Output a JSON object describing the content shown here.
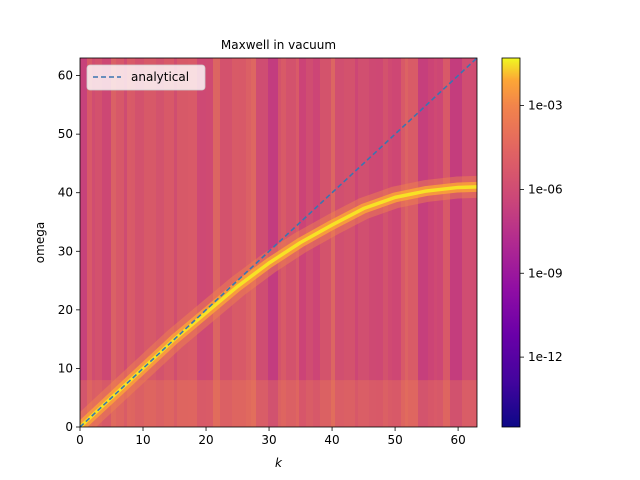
{
  "chart_data": {
    "type": "heatmap",
    "title": "Maxwell in vacuum",
    "xlabel": "k",
    "ylabel": "omega",
    "xlim": [
      0,
      63
    ],
    "ylim": [
      0,
      63
    ],
    "x_ticks": [
      {
        "value": 0,
        "label": "0"
      },
      {
        "value": 10,
        "label": "10"
      },
      {
        "value": 20,
        "label": "20"
      },
      {
        "value": 30,
        "label": "30"
      },
      {
        "value": 40,
        "label": "40"
      },
      {
        "value": 50,
        "label": "50"
      },
      {
        "value": 60,
        "label": "60"
      }
    ],
    "y_ticks": [
      {
        "value": 0,
        "label": "0"
      },
      {
        "value": 10,
        "label": "10"
      },
      {
        "value": 20,
        "label": "20"
      },
      {
        "value": 30,
        "label": "30"
      },
      {
        "value": 40,
        "label": "40"
      },
      {
        "value": 50,
        "label": "50"
      },
      {
        "value": 60,
        "label": "60"
      }
    ],
    "colormap": "plasma",
    "colorbar": {
      "scale": "log",
      "log_range": [
        -14.5,
        -1.3
      ],
      "ticks": [
        {
          "log_value": -3,
          "label": "1e-03"
        },
        {
          "log_value": -6,
          "label": "1e-06"
        },
        {
          "log_value": -9,
          "label": "1e-09"
        },
        {
          "log_value": -12,
          "label": "1e-12"
        }
      ]
    },
    "legend": {
      "placement": "upper-left",
      "entries": [
        "analytical"
      ]
    },
    "series": [
      {
        "name": "analytical",
        "style": "dashed",
        "color": "#3a75b0",
        "x": [
          0,
          63
        ],
        "y": [
          0,
          63
        ]
      }
    ],
    "dispersion_ridge": {
      "k": [
        0,
        5,
        10,
        15,
        20,
        25,
        30,
        35,
        40,
        45,
        50,
        55,
        60,
        63
      ],
      "omega": [
        0,
        5,
        10,
        15,
        19.5,
        24,
        28,
        31.5,
        34.5,
        37.3,
        39.2,
        40.3,
        40.9,
        41
      ]
    },
    "grid": false
  }
}
